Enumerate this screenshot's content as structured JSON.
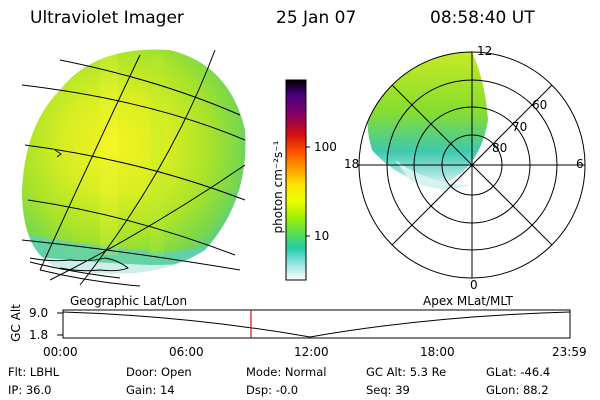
{
  "header": {
    "instrument": "Ultraviolet Imager",
    "date": "25 Jan 07",
    "time": "08:58:40 UT"
  },
  "panels": {
    "left_label": "Geographic Lat/Lon",
    "right_label": "Apex MLat/MLT"
  },
  "colorbar": {
    "unit_label": "photon cm⁻²s⁻¹",
    "ticks": [
      "100",
      "10"
    ],
    "colors": [
      "#000000",
      "#4b0082",
      "#7a0060",
      "#c00010",
      "#ff4000",
      "#ff9000",
      "#ffd000",
      "#ffff00",
      "#ccff00",
      "#88ee00",
      "#44dd44",
      "#22ccaa",
      "#66dddd",
      "#c8eef0",
      "#ffffff"
    ]
  },
  "polar": {
    "mlt_labels": [
      "12",
      "18",
      "6",
      "0"
    ],
    "mlat_labels": [
      "60",
      "70",
      "80"
    ]
  },
  "altitude_plot": {
    "axis_title": "GC Alt",
    "y_ticks": [
      "9.0",
      "1.8"
    ],
    "x_ticks": [
      "00:00",
      "06:00",
      "12:00",
      "18:00",
      "23:59"
    ],
    "current_marker_time": "08:58"
  },
  "info": {
    "row1": [
      {
        "label": "Flt:",
        "value": "LBHL"
      },
      {
        "label": "Door:",
        "value": "Open"
      },
      {
        "label": "Mode:",
        "value": "Normal"
      },
      {
        "label": "GC Alt:",
        "value": "5.3 Re"
      },
      {
        "label": "GLat:",
        "value": "-46.4"
      }
    ],
    "row2": [
      {
        "label": "IP:",
        "value": "36.0"
      },
      {
        "label": "Gain:",
        "value": "14"
      },
      {
        "label": "Dsp:",
        "value": "-0.0"
      },
      {
        "label": "Seq:",
        "value": "39"
      },
      {
        "label": "GLon:",
        "value": "88.2"
      }
    ]
  }
}
